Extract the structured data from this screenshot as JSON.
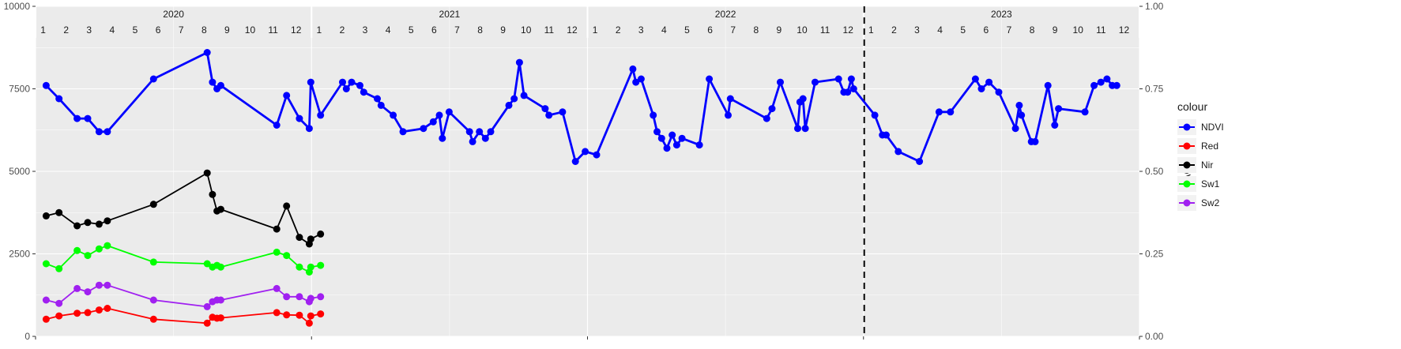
{
  "chart_data": {
    "type": "line",
    "x_axis": {
      "type": "date",
      "range": [
        "2020-01-01",
        "2023-12-31"
      ],
      "tick_labels": []
    },
    "y_left": {
      "range": [
        0,
        10000
      ],
      "ticks": [
        0,
        2500,
        5000,
        7500,
        10000
      ],
      "tick_labels": [
        "0",
        "2500",
        "5000",
        "7500",
        "10000"
      ]
    },
    "y_right": {
      "label": "NDVI",
      "range": [
        0,
        1
      ],
      "ticks": [
        0,
        0.25,
        0.5,
        0.75,
        1
      ],
      "tick_labels": [
        "0.00",
        "0.25",
        "0.50",
        "0.75",
        "1.00"
      ]
    },
    "year_labels": [
      "2020",
      "2021",
      "2022",
      "2023"
    ],
    "month_labels": [
      "1",
      "2",
      "3",
      "4",
      "5",
      "6",
      "7",
      "8",
      "9",
      "10",
      "11",
      "12"
    ],
    "vline": {
      "x": "2023-01-01",
      "style": "dashed"
    },
    "grid": true,
    "legend": {
      "title": "colour",
      "position": "right"
    },
    "series": [
      {
        "name": "NDVI",
        "axis": "right",
        "color": "#0000FF",
        "points": [
          [
            "2020-01-15",
            0.76
          ],
          [
            "2020-02-01",
            0.72
          ],
          [
            "2020-02-25",
            0.66
          ],
          [
            "2020-03-10",
            0.66
          ],
          [
            "2020-03-25",
            0.62
          ],
          [
            "2020-04-05",
            0.62
          ],
          [
            "2020-06-05",
            0.78
          ],
          [
            "2020-08-15",
            0.86
          ],
          [
            "2020-08-22",
            0.77
          ],
          [
            "2020-08-28",
            0.75
          ],
          [
            "2020-09-02",
            0.76
          ],
          [
            "2020-11-15",
            0.64
          ],
          [
            "2020-11-28",
            0.73
          ],
          [
            "2020-12-15",
            0.66
          ],
          [
            "2020-12-28",
            0.63
          ],
          [
            "2020-12-30",
            0.77
          ],
          [
            "2021-01-12",
            0.67
          ],
          [
            "2021-02-10",
            0.77
          ],
          [
            "2021-02-15",
            0.75
          ],
          [
            "2021-02-22",
            0.77
          ],
          [
            "2021-03-05",
            0.76
          ],
          [
            "2021-03-10",
            0.74
          ],
          [
            "2021-03-28",
            0.72
          ],
          [
            "2021-04-02",
            0.7
          ],
          [
            "2021-04-18",
            0.67
          ],
          [
            "2021-05-01",
            0.62
          ],
          [
            "2021-05-28",
            0.63
          ],
          [
            "2021-06-10",
            0.65
          ],
          [
            "2021-06-18",
            0.67
          ],
          [
            "2021-06-22",
            0.6
          ],
          [
            "2021-07-01",
            0.68
          ],
          [
            "2021-07-28",
            0.62
          ],
          [
            "2021-08-01",
            0.59
          ],
          [
            "2021-08-10",
            0.62
          ],
          [
            "2021-08-18",
            0.6
          ],
          [
            "2021-08-25",
            0.62
          ],
          [
            "2021-09-18",
            0.7
          ],
          [
            "2021-09-25",
            0.72
          ],
          [
            "2021-10-02",
            0.83
          ],
          [
            "2021-10-08",
            0.73
          ],
          [
            "2021-11-05",
            0.69
          ],
          [
            "2021-11-10",
            0.67
          ],
          [
            "2021-11-28",
            0.68
          ],
          [
            "2021-12-15",
            0.53
          ],
          [
            "2021-12-28",
            0.56
          ],
          [
            "2022-01-12",
            0.55
          ],
          [
            "2022-03-01",
            0.81
          ],
          [
            "2022-03-05",
            0.77
          ],
          [
            "2022-03-12",
            0.78
          ],
          [
            "2022-03-28",
            0.67
          ],
          [
            "2022-04-02",
            0.62
          ],
          [
            "2022-04-08",
            0.6
          ],
          [
            "2022-04-15",
            0.57
          ],
          [
            "2022-04-22",
            0.61
          ],
          [
            "2022-04-28",
            0.58
          ],
          [
            "2022-05-05",
            0.6
          ],
          [
            "2022-05-28",
            0.58
          ],
          [
            "2022-06-10",
            0.78
          ],
          [
            "2022-07-05",
            0.67
          ],
          [
            "2022-07-08",
            0.72
          ],
          [
            "2022-08-25",
            0.66
          ],
          [
            "2022-09-01",
            0.69
          ],
          [
            "2022-09-12",
            0.77
          ],
          [
            "2022-10-05",
            0.63
          ],
          [
            "2022-10-08",
            0.71
          ],
          [
            "2022-10-12",
            0.72
          ],
          [
            "2022-10-15",
            0.63
          ],
          [
            "2022-10-28",
            0.77
          ],
          [
            "2022-11-28",
            0.78
          ],
          [
            "2022-12-05",
            0.74
          ],
          [
            "2022-12-10",
            0.74
          ],
          [
            "2022-12-15",
            0.78
          ],
          [
            "2022-12-18",
            0.75
          ],
          [
            "2023-01-15",
            0.67
          ],
          [
            "2023-01-25",
            0.61
          ],
          [
            "2023-01-30",
            0.61
          ],
          [
            "2023-02-15",
            0.56
          ],
          [
            "2023-03-15",
            0.53
          ],
          [
            "2023-04-10",
            0.68
          ],
          [
            "2023-04-25",
            0.68
          ],
          [
            "2023-05-28",
            0.78
          ],
          [
            "2023-06-05",
            0.75
          ],
          [
            "2023-06-15",
            0.77
          ],
          [
            "2023-06-28",
            0.74
          ],
          [
            "2023-07-20",
            0.63
          ],
          [
            "2023-07-25",
            0.7
          ],
          [
            "2023-07-28",
            0.67
          ],
          [
            "2023-08-10",
            0.59
          ],
          [
            "2023-08-15",
            0.59
          ],
          [
            "2023-09-01",
            0.76
          ],
          [
            "2023-09-10",
            0.64
          ],
          [
            "2023-09-15",
            0.69
          ],
          [
            "2023-10-20",
            0.68
          ],
          [
            "2023-11-01",
            0.76
          ],
          [
            "2023-11-10",
            0.77
          ],
          [
            "2023-11-18",
            0.78
          ],
          [
            "2023-11-25",
            0.76
          ],
          [
            "2023-12-01",
            0.76
          ]
        ]
      },
      {
        "name": "Red",
        "axis": "left",
        "color": "#FF0000",
        "points": [
          [
            "2020-01-15",
            520
          ],
          [
            "2020-02-01",
            620
          ],
          [
            "2020-02-25",
            700
          ],
          [
            "2020-03-10",
            720
          ],
          [
            "2020-03-25",
            800
          ],
          [
            "2020-04-05",
            850
          ],
          [
            "2020-06-05",
            520
          ],
          [
            "2020-08-15",
            400
          ],
          [
            "2020-08-22",
            580
          ],
          [
            "2020-08-28",
            550
          ],
          [
            "2020-09-02",
            560
          ],
          [
            "2020-11-15",
            720
          ],
          [
            "2020-11-28",
            650
          ],
          [
            "2020-12-15",
            640
          ],
          [
            "2020-12-28",
            400
          ],
          [
            "2020-12-30",
            620
          ],
          [
            "2021-01-12",
            680
          ]
        ]
      },
      {
        "name": "Nir",
        "axis": "left",
        "color": "#000000",
        "points": [
          [
            "2020-01-15",
            3650
          ],
          [
            "2020-02-01",
            3750
          ],
          [
            "2020-02-25",
            3350
          ],
          [
            "2020-03-10",
            3450
          ],
          [
            "2020-03-25",
            3400
          ],
          [
            "2020-04-05",
            3500
          ],
          [
            "2020-06-05",
            4000
          ],
          [
            "2020-08-15",
            4950
          ],
          [
            "2020-08-22",
            4300
          ],
          [
            "2020-08-28",
            3800
          ],
          [
            "2020-09-02",
            3850
          ],
          [
            "2020-11-15",
            3250
          ],
          [
            "2020-11-28",
            3950
          ],
          [
            "2020-12-15",
            3000
          ],
          [
            "2020-12-28",
            2800
          ],
          [
            "2020-12-30",
            2950
          ],
          [
            "2021-01-12",
            3100
          ]
        ]
      },
      {
        "name": "Sw1",
        "axis": "left",
        "color": "#00FF00",
        "points": [
          [
            "2020-01-15",
            2200
          ],
          [
            "2020-02-01",
            2050
          ],
          [
            "2020-02-25",
            2600
          ],
          [
            "2020-03-10",
            2450
          ],
          [
            "2020-03-25",
            2650
          ],
          [
            "2020-04-05",
            2750
          ],
          [
            "2020-06-05",
            2250
          ],
          [
            "2020-08-15",
            2200
          ],
          [
            "2020-08-22",
            2100
          ],
          [
            "2020-08-28",
            2150
          ],
          [
            "2020-09-02",
            2100
          ],
          [
            "2020-11-15",
            2550
          ],
          [
            "2020-11-28",
            2450
          ],
          [
            "2020-12-15",
            2100
          ],
          [
            "2020-12-28",
            1950
          ],
          [
            "2020-12-30",
            2100
          ],
          [
            "2021-01-12",
            2150
          ]
        ]
      },
      {
        "name": "Sw2",
        "axis": "left",
        "color": "#A020F0",
        "points": [
          [
            "2020-01-15",
            1100
          ],
          [
            "2020-02-01",
            1000
          ],
          [
            "2020-02-25",
            1450
          ],
          [
            "2020-03-10",
            1350
          ],
          [
            "2020-03-25",
            1550
          ],
          [
            "2020-04-05",
            1550
          ],
          [
            "2020-06-05",
            1100
          ],
          [
            "2020-08-15",
            900
          ],
          [
            "2020-08-22",
            1050
          ],
          [
            "2020-08-28",
            1100
          ],
          [
            "2020-09-02",
            1100
          ],
          [
            "2020-11-15",
            1450
          ],
          [
            "2020-11-28",
            1200
          ],
          [
            "2020-12-15",
            1200
          ],
          [
            "2020-12-28",
            1050
          ],
          [
            "2020-12-30",
            1150
          ],
          [
            "2021-01-12",
            1200
          ]
        ]
      }
    ]
  }
}
